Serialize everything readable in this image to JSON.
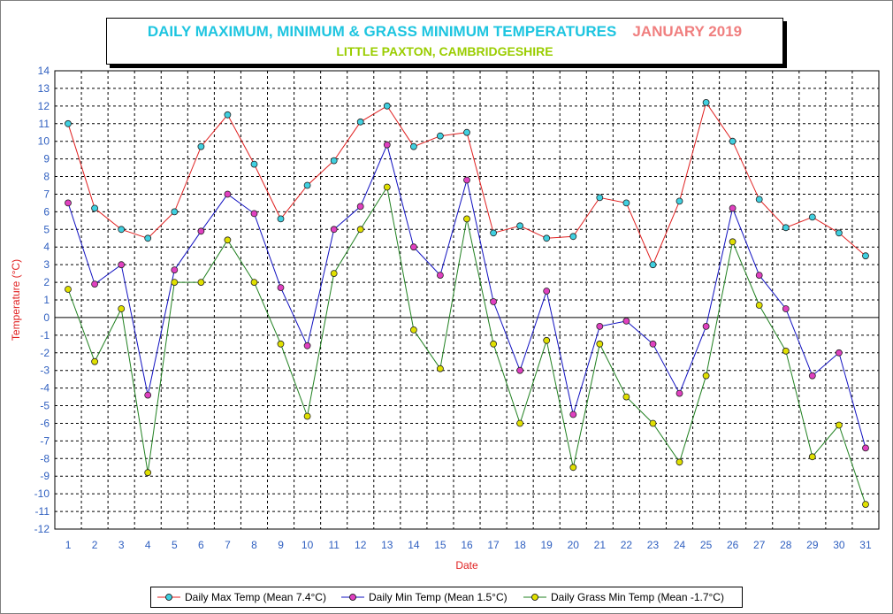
{
  "title": {
    "main": "DAILY MAXIMUM, MINIMUM & GRASS MINIMUM TEMPERATURES",
    "month": "JANUARY 2019",
    "location": "LITTLE PAXTON, CAMBRIDGESHIRE"
  },
  "colors": {
    "max_line": "#e02020",
    "max_marker": "#40d0e0",
    "min_line": "#1010c0",
    "min_marker": "#e040c0",
    "grass_line": "#208020",
    "grass_marker": "#e0e000",
    "ylabel": "#e02020",
    "xlabel": "#e02020",
    "ticks": "#3060c0"
  },
  "legend": [
    {
      "label": "Daily Max Temp (Mean 7.4°C)"
    },
    {
      "label": "Daily Min Temp (Mean 1.5°C)"
    },
    {
      "label": "Daily Grass Min Temp (Mean -1.7°C)"
    }
  ],
  "chart_data": {
    "type": "line",
    "xlabel": "Date",
    "ylabel": "Temperature (°C)",
    "ylim": [
      -12,
      14
    ],
    "grid": true,
    "legend_position": "bottom",
    "x": [
      1,
      2,
      3,
      4,
      5,
      6,
      7,
      8,
      9,
      10,
      11,
      12,
      13,
      14,
      15,
      16,
      17,
      18,
      19,
      20,
      21,
      22,
      23,
      24,
      25,
      26,
      27,
      28,
      29,
      30,
      31
    ],
    "y_ticks": [
      14,
      13,
      12,
      11,
      10,
      9,
      8,
      7,
      6,
      5,
      4,
      3,
      2,
      1,
      0,
      -1,
      -2,
      -3,
      -4,
      -5,
      -6,
      -7,
      -8,
      -9,
      -10,
      -11,
      -12
    ],
    "series": [
      {
        "name": "Daily Max Temp (Mean 7.4°C)",
        "values": [
          11.0,
          6.2,
          5.0,
          4.5,
          6.0,
          9.7,
          11.5,
          8.7,
          5.6,
          7.5,
          8.9,
          11.1,
          12.0,
          9.7,
          10.3,
          10.5,
          4.8,
          5.2,
          4.5,
          4.6,
          6.8,
          6.5,
          3.0,
          6.6,
          12.2,
          10.0,
          6.7,
          5.1,
          5.7,
          4.8,
          3.5
        ]
      },
      {
        "name": "Daily Min Temp (Mean 1.5°C)",
        "values": [
          6.5,
          1.9,
          3.0,
          -4.4,
          2.7,
          4.9,
          7.0,
          5.9,
          1.7,
          -1.6,
          5.0,
          6.3,
          9.8,
          4.0,
          2.4,
          7.8,
          0.9,
          -3.0,
          1.5,
          -5.5,
          -0.5,
          -0.2,
          -1.5,
          -4.3,
          -0.5,
          6.2,
          2.4,
          0.5,
          -3.3,
          -2.0,
          -7.4
        ]
      },
      {
        "name": "Daily Grass Min Temp (Mean -1.7°C)",
        "values": [
          1.6,
          -2.5,
          0.5,
          -8.8,
          2.0,
          2.0,
          4.4,
          2.0,
          -1.5,
          -5.6,
          2.5,
          5.0,
          7.4,
          -0.7,
          -2.9,
          5.6,
          -1.5,
          -6.0,
          -1.3,
          -8.5,
          -1.5,
          -4.5,
          -6.0,
          -8.2,
          -3.3,
          4.3,
          0.7,
          -1.9,
          -7.9,
          -6.1,
          -10.6
        ]
      }
    ]
  }
}
